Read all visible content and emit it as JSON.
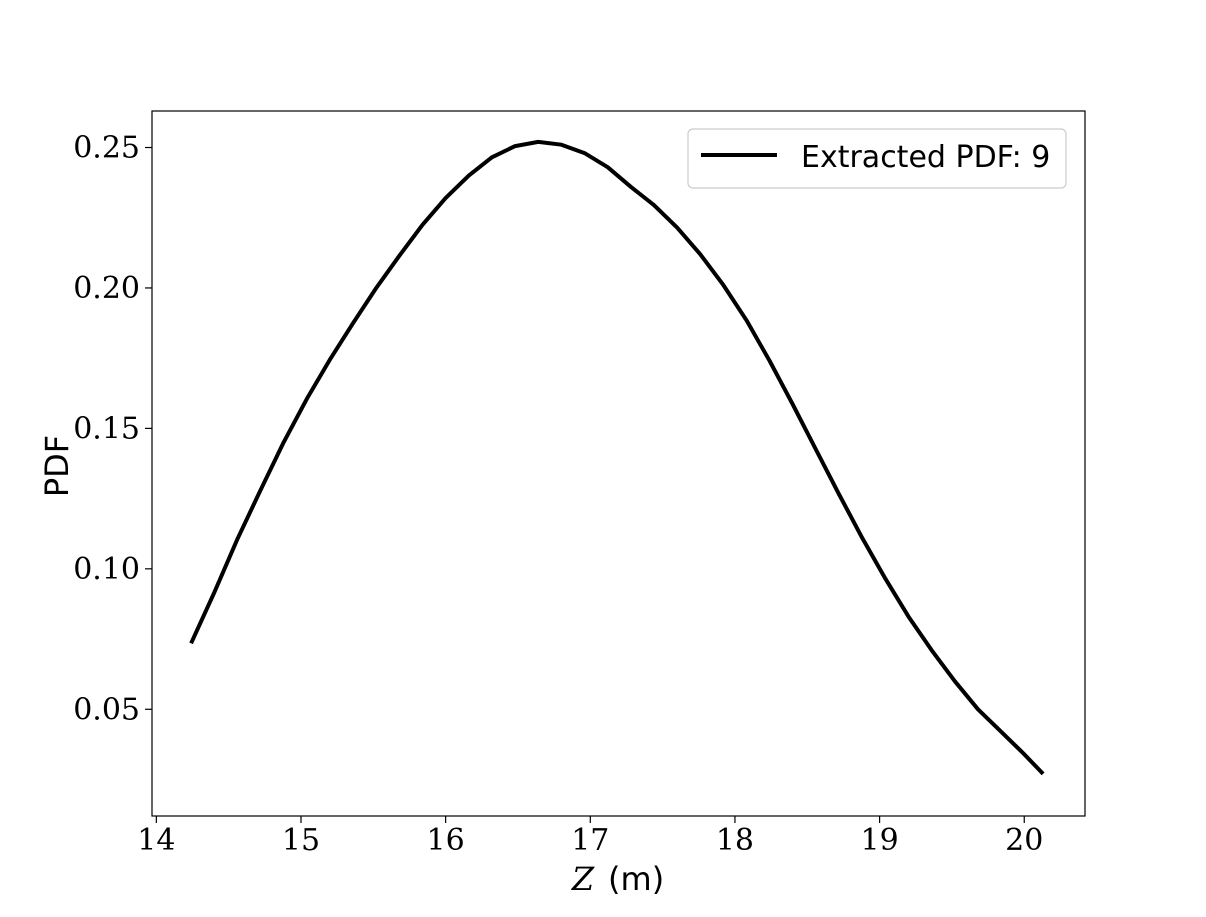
{
  "chart_data": {
    "type": "line",
    "xlabel_var": "Z",
    "xlabel_unit": "(m)",
    "ylabel": "PDF",
    "xlim": [
      13.97,
      20.42
    ],
    "ylim": [
      0.012,
      0.263
    ],
    "xticks": [
      14,
      15,
      16,
      17,
      18,
      19,
      20
    ],
    "xtick_labels": [
      "14",
      "15",
      "16",
      "17",
      "18",
      "19",
      "20"
    ],
    "yticks": [
      0.05,
      0.1,
      0.15,
      0.2,
      0.25
    ],
    "ytick_labels": [
      "0.05",
      "0.10",
      "0.15",
      "0.20",
      "0.25"
    ],
    "grid": false,
    "legend_position": "top-right",
    "series": [
      {
        "name": "Extracted PDF: 9",
        "color": "#000000",
        "x": [
          14.24,
          14.4,
          14.56,
          14.72,
          14.88,
          15.04,
          15.2,
          15.36,
          15.52,
          15.68,
          15.84,
          16.0,
          16.16,
          16.32,
          16.48,
          16.64,
          16.8,
          16.96,
          17.12,
          17.28,
          17.44,
          17.6,
          17.76,
          17.92,
          18.08,
          18.24,
          18.4,
          18.56,
          18.72,
          18.88,
          19.04,
          19.2,
          19.36,
          19.52,
          19.68,
          19.84,
          20.0,
          20.13
        ],
        "y": [
          0.0735,
          0.0915,
          0.1105,
          0.128,
          0.145,
          0.1605,
          0.1745,
          0.1875,
          0.2,
          0.2115,
          0.2225,
          0.232,
          0.24,
          0.2465,
          0.2505,
          0.252,
          0.251,
          0.248,
          0.243,
          0.236,
          0.2295,
          0.2215,
          0.212,
          0.201,
          0.1885,
          0.174,
          0.1585,
          0.1425,
          0.1265,
          0.111,
          0.0965,
          0.083,
          0.071,
          0.06,
          0.05,
          0.042,
          0.034,
          0.027
        ]
      }
    ]
  }
}
